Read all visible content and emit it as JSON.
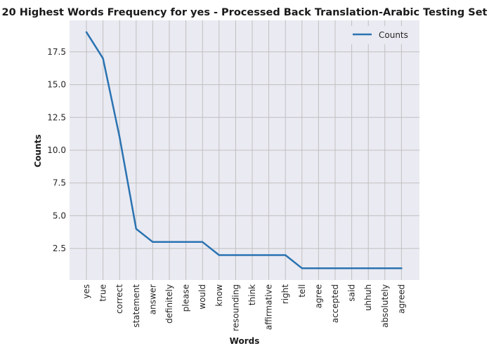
{
  "chart_data": {
    "type": "line",
    "title": "20 Highest Words Frequency for yes - Processed Back Translation-Arabic Testing Set",
    "xlabel": "Words",
    "ylabel": "Counts",
    "categories": [
      "yes",
      "true",
      "correct",
      "statement",
      "answer",
      "definitely",
      "please",
      "would",
      "know",
      "resounding",
      "think",
      "affirmative",
      "right",
      "tell",
      "agree",
      "accepted",
      "said",
      "uhhuh",
      "absolutely",
      "agreed"
    ],
    "series": [
      {
        "name": "Counts",
        "color": "#2a73b2",
        "values": [
          19,
          17,
          11,
          4,
          3,
          3,
          3,
          3,
          2,
          2,
          2,
          2,
          2,
          1,
          1,
          1,
          1,
          1,
          1,
          1
        ]
      }
    ],
    "ylim": [
      0.1,
      19.9
    ],
    "yticks": [
      2.5,
      5.0,
      7.5,
      10.0,
      12.5,
      15.0,
      17.5
    ],
    "ytick_labels": [
      "2.5",
      "5.0",
      "7.5",
      "10.0",
      "12.5",
      "15.0",
      "17.5"
    ],
    "grid": true,
    "legend_position": "top-right",
    "colors": {
      "plot_background": "#eaeaf2",
      "grid": "#c0c0c0"
    }
  }
}
